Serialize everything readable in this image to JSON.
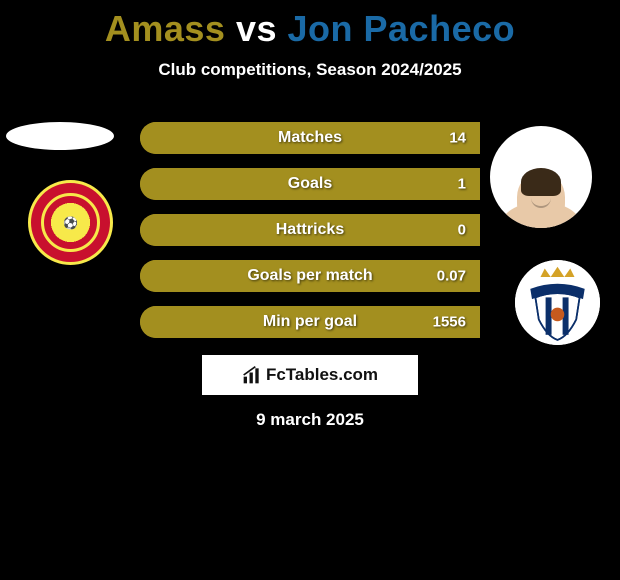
{
  "title": {
    "player1": "Amass",
    "player2": "Jon Pacheco",
    "color1": "#a38f1f",
    "color2": "#1a6aa6"
  },
  "subtitle": "Club competitions, Season 2024/2025",
  "stats": {
    "bg_color": "#a38f1f",
    "fill_left_color": "#a38f1f",
    "fill_right_color": "#1a6aa6",
    "rows": [
      {
        "label": "Matches",
        "left": "",
        "right": "14",
        "left_pct": 100,
        "right_pct": 0
      },
      {
        "label": "Goals",
        "left": "",
        "right": "1",
        "left_pct": 100,
        "right_pct": 0
      },
      {
        "label": "Hattricks",
        "left": "",
        "right": "0",
        "left_pct": 100,
        "right_pct": 0
      },
      {
        "label": "Goals per match",
        "left": "",
        "right": "0.07",
        "left_pct": 100,
        "right_pct": 0
      },
      {
        "label": "Min per goal",
        "left": "",
        "right": "1556",
        "left_pct": 100,
        "right_pct": 0
      }
    ]
  },
  "brand": "FcTables.com",
  "date": "9 march 2025",
  "club_right": {
    "crown_color": "#d4a227",
    "band_color": "#0b2f6a",
    "stripe_color": "#0b2f6a",
    "bg_color": "#ffffff",
    "ball_color": "#c65a1e"
  }
}
